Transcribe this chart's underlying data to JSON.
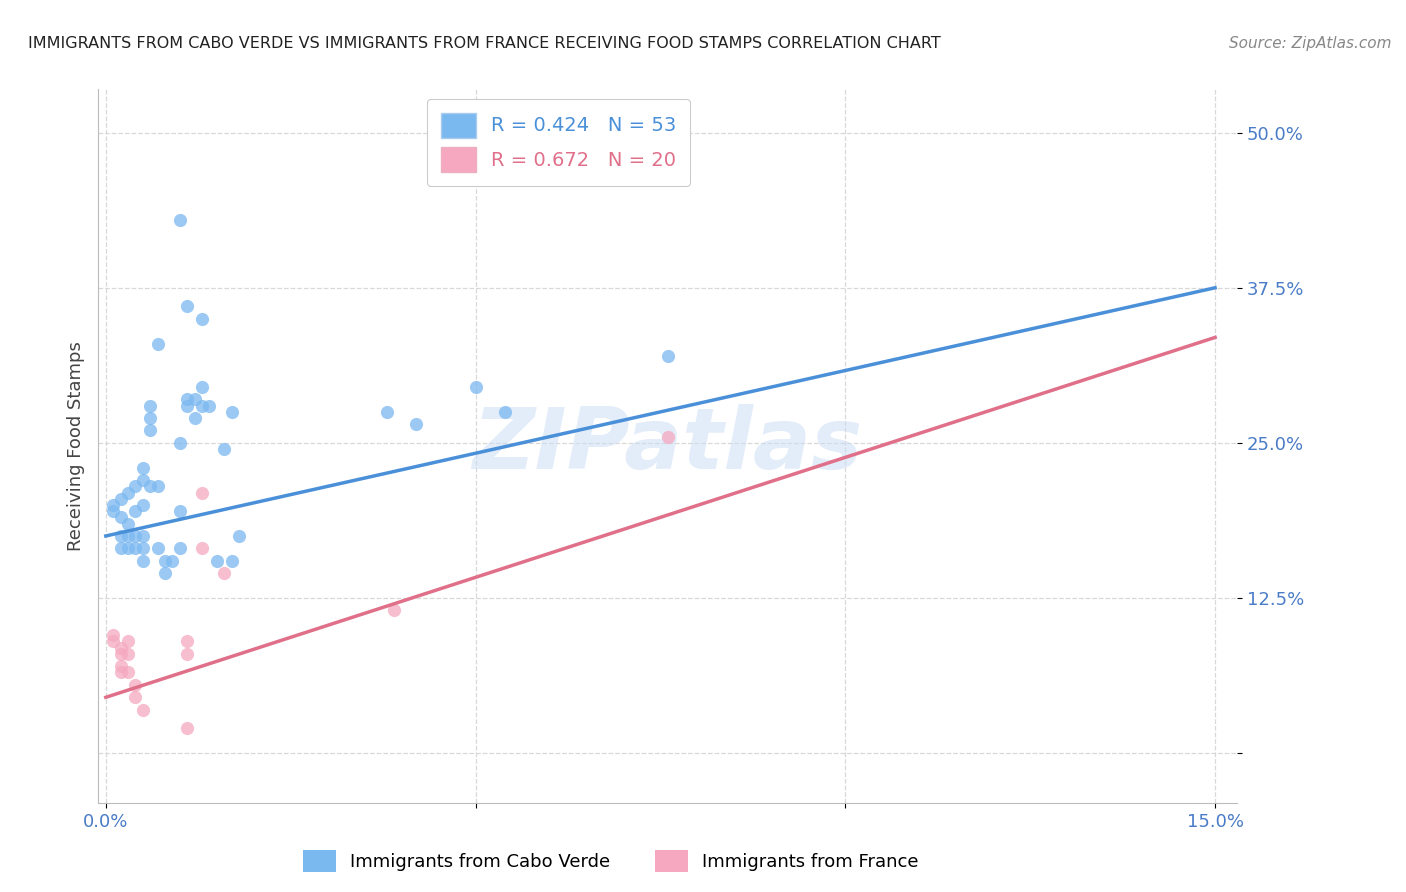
{
  "title": "IMMIGRANTS FROM CABO VERDE VS IMMIGRANTS FROM FRANCE RECEIVING FOOD STAMPS CORRELATION CHART",
  "source": "Source: ZipAtlas.com",
  "ylabel": "Receiving Food Stamps",
  "cabo_verde_color": "#7ab8f0",
  "france_color": "#f5a8c0",
  "cabo_verde_line_color": "#4a90d9",
  "france_line_color": "#e0708a",
  "cabo_verde_R": 0.424,
  "cabo_verde_N": 53,
  "france_R": 0.672,
  "france_N": 20,
  "x_lim": [
    -0.001,
    0.153
  ],
  "y_lim": [
    -0.04,
    0.535
  ],
  "x_ticks": [
    0.0,
    0.05,
    0.1,
    0.15
  ],
  "x_tick_labels": [
    "0.0%",
    "",
    "",
    "15.0%"
  ],
  "y_ticks": [
    0.0,
    0.125,
    0.25,
    0.375,
    0.5
  ],
  "y_tick_labels": [
    "",
    "12.5%",
    "25.0%",
    "37.5%",
    "50.0%"
  ],
  "cabo_verde_scatter": [
    [
      0.001,
      0.2
    ],
    [
      0.001,
      0.195
    ],
    [
      0.002,
      0.205
    ],
    [
      0.002,
      0.19
    ],
    [
      0.002,
      0.175
    ],
    [
      0.002,
      0.165
    ],
    [
      0.003,
      0.21
    ],
    [
      0.003,
      0.185
    ],
    [
      0.003,
      0.175
    ],
    [
      0.003,
      0.165
    ],
    [
      0.004,
      0.215
    ],
    [
      0.004,
      0.195
    ],
    [
      0.004,
      0.175
    ],
    [
      0.004,
      0.165
    ],
    [
      0.005,
      0.23
    ],
    [
      0.005,
      0.22
    ],
    [
      0.005,
      0.2
    ],
    [
      0.005,
      0.175
    ],
    [
      0.005,
      0.165
    ],
    [
      0.005,
      0.155
    ],
    [
      0.006,
      0.28
    ],
    [
      0.006,
      0.27
    ],
    [
      0.006,
      0.26
    ],
    [
      0.006,
      0.215
    ],
    [
      0.007,
      0.33
    ],
    [
      0.007,
      0.215
    ],
    [
      0.007,
      0.165
    ],
    [
      0.008,
      0.155
    ],
    [
      0.008,
      0.145
    ],
    [
      0.009,
      0.155
    ],
    [
      0.01,
      0.43
    ],
    [
      0.01,
      0.195
    ],
    [
      0.01,
      0.165
    ],
    [
      0.01,
      0.25
    ],
    [
      0.011,
      0.36
    ],
    [
      0.011,
      0.285
    ],
    [
      0.011,
      0.28
    ],
    [
      0.012,
      0.285
    ],
    [
      0.012,
      0.27
    ],
    [
      0.013,
      0.35
    ],
    [
      0.013,
      0.295
    ],
    [
      0.013,
      0.28
    ],
    [
      0.014,
      0.28
    ],
    [
      0.015,
      0.155
    ],
    [
      0.016,
      0.245
    ],
    [
      0.017,
      0.275
    ],
    [
      0.017,
      0.155
    ],
    [
      0.018,
      0.175
    ],
    [
      0.038,
      0.275
    ],
    [
      0.042,
      0.265
    ],
    [
      0.05,
      0.295
    ],
    [
      0.054,
      0.275
    ],
    [
      0.076,
      0.32
    ]
  ],
  "france_scatter": [
    [
      0.001,
      0.095
    ],
    [
      0.001,
      0.09
    ],
    [
      0.002,
      0.085
    ],
    [
      0.002,
      0.08
    ],
    [
      0.002,
      0.07
    ],
    [
      0.002,
      0.065
    ],
    [
      0.003,
      0.09
    ],
    [
      0.003,
      0.08
    ],
    [
      0.003,
      0.065
    ],
    [
      0.004,
      0.055
    ],
    [
      0.004,
      0.045
    ],
    [
      0.005,
      0.035
    ],
    [
      0.011,
      0.02
    ],
    [
      0.011,
      0.09
    ],
    [
      0.011,
      0.08
    ],
    [
      0.013,
      0.21
    ],
    [
      0.013,
      0.165
    ],
    [
      0.016,
      0.145
    ],
    [
      0.039,
      0.115
    ],
    [
      0.076,
      0.255
    ]
  ],
  "cabo_verde_line_x": [
    0.0,
    0.15
  ],
  "cabo_verde_line_y": [
    0.175,
    0.375
  ],
  "france_line_x": [
    0.0,
    0.15
  ],
  "france_line_y": [
    0.045,
    0.335
  ],
  "watermark": "ZIPatlas",
  "background_color": "#ffffff",
  "grid_color": "#d8d8d8",
  "tick_color": "#4a7cc7",
  "title_color": "#222222",
  "source_color": "#888888"
}
